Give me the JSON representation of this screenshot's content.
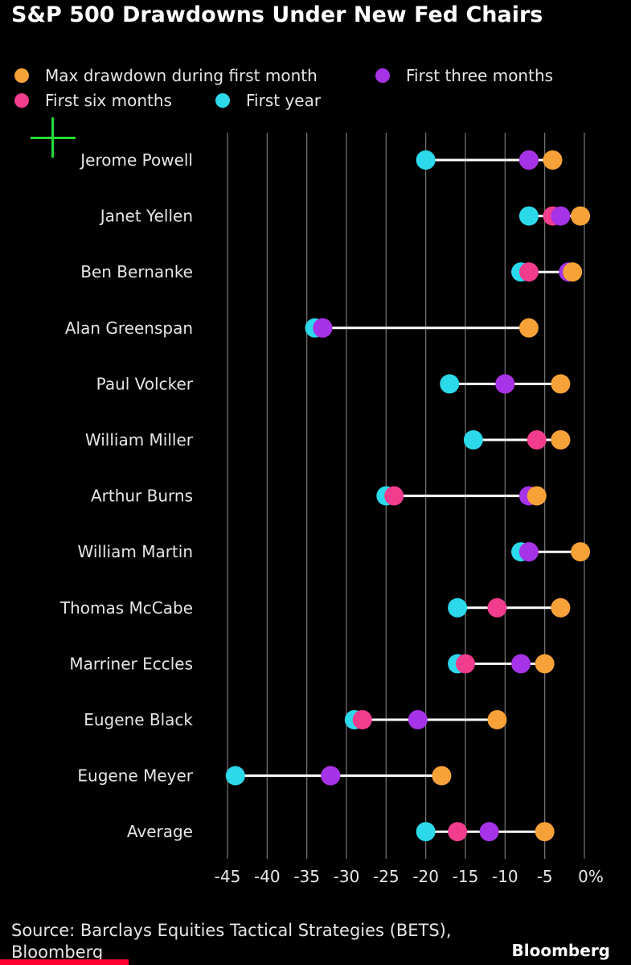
{
  "title": "S&P 500 Drawdowns Under New Fed Chairs",
  "source": "Source: Barclays Equities Tactical Strategies (BETS), Bloomberg",
  "brand": "Bloomberg",
  "colors": {
    "first_month": "#f7a238",
    "three_months": "#a633e8",
    "six_months": "#f23d8e",
    "first_year": "#2bd9ea",
    "connector": "#ffffff",
    "grid": "#777777",
    "background": "#000000",
    "progress": "#ff0033",
    "cursor": "#22dd33"
  },
  "legend": [
    {
      "key": "first_month",
      "label": "Max drawdown during first month"
    },
    {
      "key": "three_months",
      "label": "First three months"
    },
    {
      "key": "six_months",
      "label": "First six months"
    },
    {
      "key": "first_year",
      "label": "First year"
    }
  ],
  "chart_data": {
    "type": "dot-range",
    "title": "S&P 500 Drawdowns Under New Fed Chairs",
    "xlim": [
      -45,
      0
    ],
    "x_ticks": [
      -45,
      -40,
      -35,
      -30,
      -25,
      -20,
      -15,
      -10,
      -5,
      0
    ],
    "x_tick_labels": [
      "-45",
      "-40",
      "-35",
      "-30",
      "-25",
      "-20",
      "-15",
      "-10",
      "-5",
      "0%"
    ],
    "grid": "vertical",
    "legend_position": "top",
    "categories": [
      "Jerome Powell",
      "Janet Yellen",
      "Ben Bernanke",
      "Alan Greenspan",
      "Paul Volcker",
      "William Miller",
      "Arthur Burns",
      "William Martin",
      "Thomas McCabe",
      "Marriner Eccles",
      "Eugene Black",
      "Eugene Meyer",
      "Average"
    ],
    "series": [
      {
        "key": "first_year",
        "name": "First year",
        "values": [
          -20,
          -7,
          -8,
          -34,
          -17,
          -14,
          -25,
          -8,
          -16,
          -16,
          -29,
          -44,
          -20
        ]
      },
      {
        "key": "six_months",
        "name": "First six months",
        "values": [
          -7,
          -4,
          -7,
          -33,
          -10,
          -6,
          -24,
          -7,
          -11,
          -15,
          -28,
          -32,
          -16
        ]
      },
      {
        "key": "three_months",
        "name": "First three months",
        "values": [
          -7,
          -3,
          -2,
          -33,
          -10,
          -3,
          -7,
          -7,
          -3,
          -8,
          -21,
          -32,
          -12
        ]
      },
      {
        "key": "first_month",
        "name": "Max drawdown during first month",
        "values": [
          -4,
          -0.5,
          -1.5,
          -7,
          -3,
          -3,
          -6,
          -0.5,
          -3,
          -5,
          -11,
          -18,
          -5
        ]
      }
    ]
  }
}
